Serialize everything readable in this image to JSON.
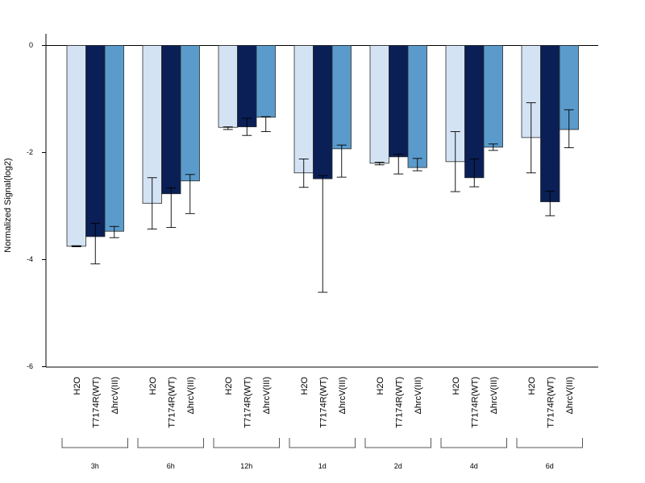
{
  "chart_data": {
    "type": "bar",
    "ylabel": "Normalized Signal(log2)",
    "ylim": [
      -6,
      0.2
    ],
    "yticks": [
      "0",
      "-2",
      "-4",
      "-6"
    ],
    "yticks_values": [
      0,
      -2,
      -4,
      -6
    ],
    "groups": [
      "3h",
      "6h",
      "12h",
      "1d",
      "2d",
      "4d",
      "6d"
    ],
    "series": [
      {
        "name": "H2O",
        "color": "#d4e3f4",
        "values": [
          -3.75,
          -2.95,
          -1.53,
          -2.38,
          -2.2,
          -2.17,
          -1.72
        ],
        "err_upper": [
          -3.74,
          -2.47,
          -1.52,
          -2.12,
          -2.18,
          -1.61,
          -1.07
        ],
        "err_lower": [
          -3.76,
          -3.43,
          -1.57,
          -2.65,
          -2.23,
          -2.73,
          -2.38
        ]
      },
      {
        "name": "T7174R(WT)",
        "color": "#0a1f56",
        "values": [
          -3.57,
          -2.77,
          -1.52,
          -2.49,
          -2.08,
          -2.47,
          -2.92
        ],
        "err_upper": [
          -3.32,
          -2.66,
          -1.36,
          -2.43,
          -2.03,
          -2.12,
          -2.72
        ],
        "err_lower": [
          -4.08,
          -3.4,
          -1.68,
          -4.61,
          -2.4,
          -2.64,
          -3.18
        ]
      },
      {
        "name": "ΔhrcV(III)",
        "color": "#5a9bcc",
        "values": [
          -3.47,
          -2.53,
          -1.34,
          -1.93,
          -2.28,
          -1.9,
          -1.57
        ],
        "err_upper": [
          -3.38,
          -2.41,
          -1.33,
          -1.86,
          -2.11,
          -1.84,
          -1.2
        ],
        "err_lower": [
          -3.59,
          -3.14,
          -1.61,
          -2.46,
          -2.34,
          -1.96,
          -1.91
        ]
      }
    ]
  }
}
